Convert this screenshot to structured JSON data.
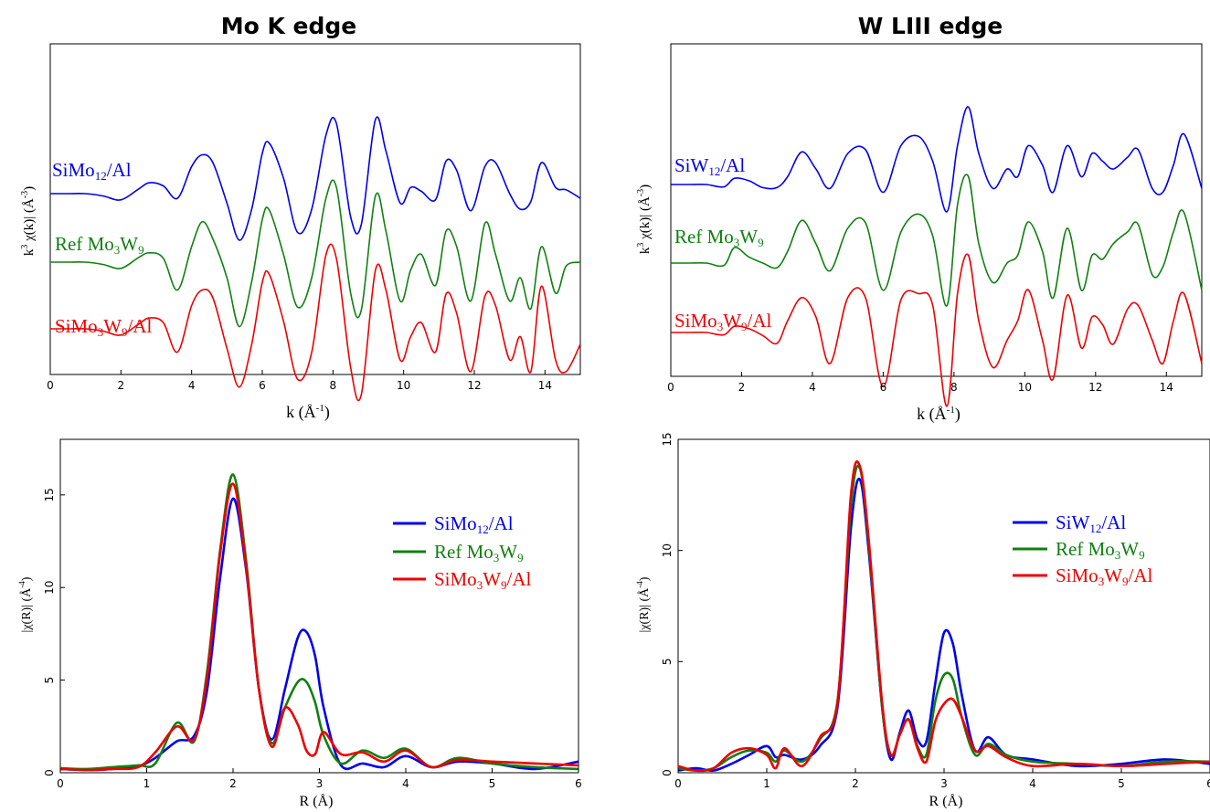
{
  "chart_data": [
    {
      "type": "line",
      "title": "Mo K edge",
      "xlabel": "k (Å-1)",
      "ylabel": "k3 χ(k)| (Å-3)",
      "xlim": [
        0,
        15
      ],
      "xticks": [
        "0",
        "2",
        "4",
        "6",
        "8",
        "10",
        "12",
        "14"
      ],
      "grid": false,
      "series": [
        {
          "name": "SiMo12/Al",
          "color": "#0000ee",
          "offset": 164,
          "x": [
            0,
            0.5,
            1,
            1.5,
            2,
            2.5,
            2.8,
            3.2,
            3.6,
            4,
            4.3,
            4.6,
            5,
            5.35,
            5.7,
            6,
            6.2,
            6.6,
            7,
            7.4,
            7.8,
            8.1,
            8.5,
            8.8,
            9.2,
            9.5,
            9.9,
            10.2,
            10.5,
            10.9,
            11.2,
            11.5,
            11.9,
            12.3,
            12.6,
            13,
            13.3,
            13.6,
            13.9,
            14.3,
            14.6,
            15
          ],
          "y": [
            0,
            0,
            0,
            -3,
            -8,
            6,
            14,
            10,
            -6,
            35,
            50,
            40,
            -12,
            -60,
            -20,
            52,
            65,
            20,
            -50,
            -20,
            75,
            90,
            -30,
            -40,
            95,
            55,
            -12,
            8,
            3,
            -8,
            42,
            30,
            -22,
            35,
            40,
            0,
            -20,
            -10,
            40,
            8,
            5,
            -6
          ]
        },
        {
          "name": "Ref Mo3W9",
          "color": "#108010",
          "offset": 239,
          "x": [
            0,
            0.5,
            1,
            1.5,
            2,
            2.5,
            2.8,
            3.2,
            3.6,
            4,
            4.3,
            4.6,
            5,
            5.35,
            5.7,
            6,
            6.2,
            6.6,
            7,
            7.4,
            7.8,
            8.1,
            8.5,
            8.8,
            9.2,
            9.5,
            9.9,
            10.2,
            10.5,
            10.9,
            11.2,
            11.5,
            11.9,
            12.3,
            12.6,
            13,
            13.3,
            13.6,
            13.9,
            14.3,
            14.6,
            15
          ],
          "y": [
            0,
            0,
            0,
            -3,
            -8,
            6,
            12,
            5,
            -36,
            20,
            52,
            30,
            -20,
            -83,
            -25,
            55,
            67,
            10,
            -58,
            -20,
            82,
            96,
            -40,
            -62,
            85,
            40,
            -50,
            -10,
            10,
            -30,
            40,
            20,
            -50,
            50,
            10,
            -50,
            -20,
            -60,
            20,
            -40,
            -5,
            0
          ]
        },
        {
          "name": "SiMo3W9/Al",
          "color": "#ee0000",
          "offset": 312,
          "x": [
            0,
            0.5,
            1,
            1.5,
            2,
            2.5,
            2.8,
            3.2,
            3.6,
            4,
            4.3,
            4.6,
            5,
            5.35,
            5.7,
            6,
            6.2,
            6.6,
            7,
            7.4,
            7.8,
            8.1,
            8.5,
            8.8,
            9.2,
            9.5,
            9.9,
            10.2,
            10.5,
            10.9,
            11.2,
            11.5,
            11.9,
            12.3,
            12.6,
            13,
            13.3,
            13.6,
            13.9,
            14.3,
            14.6,
            15
          ],
          "y": [
            0,
            0,
            0,
            -3,
            -8,
            6,
            14,
            8,
            -30,
            30,
            50,
            40,
            -25,
            -75,
            -20,
            60,
            70,
            10,
            -65,
            -30,
            95,
            90,
            -50,
            -85,
            75,
            50,
            -40,
            -10,
            8,
            -30,
            45,
            20,
            -55,
            42,
            30,
            -40,
            -10,
            -55,
            55,
            -40,
            -55,
            -20
          ]
        }
      ]
    },
    {
      "type": "line",
      "title": "W LIII edge",
      "xlabel": "k (Å-1)",
      "ylabel": "k3 χ(k)| (Å-3)",
      "xlim": [
        0,
        15
      ],
      "xticks": [
        "0",
        "2",
        "4",
        "6",
        "8",
        "10",
        "12",
        "14"
      ],
      "grid": false,
      "series": [
        {
          "name": "SiW12/Al",
          "color": "#0000ee",
          "offset": 154,
          "x": [
            0,
            0.5,
            1,
            1.5,
            1.8,
            2.2,
            2.6,
            3,
            3.3,
            3.7,
            4.1,
            4.5,
            5,
            5.5,
            6,
            6.5,
            7,
            7.4,
            7.8,
            8.1,
            8.4,
            8.7,
            9.1,
            9.5,
            9.8,
            10.1,
            10.5,
            10.8,
            11.2,
            11.6,
            11.9,
            12.2,
            12.5,
            12.9,
            13.2,
            13.6,
            13.9,
            14.2,
            14.5,
            15
          ],
          "y": [
            0,
            0,
            0,
            -3,
            8,
            5,
            -4,
            -4,
            10,
            42,
            20,
            -5,
            40,
            45,
            -10,
            50,
            62,
            30,
            -35,
            50,
            100,
            40,
            -5,
            20,
            10,
            50,
            25,
            -10,
            50,
            10,
            40,
            30,
            20,
            35,
            45,
            -5,
            -10,
            25,
            65,
            -5
          ]
        },
        {
          "name": "Ref Mo3W9",
          "color": "#108010",
          "offset": 240,
          "x": [
            0,
            0.5,
            1,
            1.5,
            1.8,
            2.2,
            2.6,
            3,
            3.3,
            3.7,
            4.1,
            4.5,
            5,
            5.5,
            6,
            6.5,
            7,
            7.4,
            7.8,
            8.1,
            8.4,
            8.7,
            9.1,
            9.5,
            9.8,
            10.1,
            10.5,
            10.8,
            11.2,
            11.6,
            11.9,
            12.2,
            12.5,
            12.9,
            13.2,
            13.6,
            13.9,
            14.2,
            14.5,
            15
          ],
          "y": [
            0,
            0,
            0,
            -3,
            20,
            8,
            0,
            -6,
            15,
            55,
            25,
            -10,
            45,
            52,
            -35,
            40,
            63,
            35,
            -55,
            75,
            112,
            25,
            -25,
            0,
            10,
            53,
            15,
            -45,
            45,
            -35,
            10,
            5,
            25,
            40,
            50,
            -15,
            -5,
            40,
            65,
            -35
          ]
        },
        {
          "name": "SiMo3W9/Al",
          "color": "#ee0000",
          "offset": 316,
          "x": [
            0,
            0.5,
            1,
            1.5,
            1.8,
            2.2,
            2.6,
            3,
            3.3,
            3.7,
            4.1,
            4.5,
            5,
            5.5,
            6,
            6.5,
            7,
            7.4,
            7.8,
            8.1,
            8.4,
            8.7,
            9.1,
            9.5,
            9.8,
            10.1,
            10.5,
            10.8,
            11.2,
            11.6,
            11.9,
            12.2,
            12.5,
            12.9,
            13.2,
            13.6,
            13.9,
            14.2,
            14.5,
            15
          ],
          "y": [
            0,
            0,
            0,
            -3,
            8,
            5,
            -4,
            -14,
            15,
            45,
            20,
            -40,
            45,
            45,
            -70,
            42,
            50,
            35,
            -95,
            50,
            100,
            15,
            -45,
            -10,
            15,
            55,
            -10,
            -60,
            48,
            -20,
            20,
            10,
            -15,
            30,
            35,
            -10,
            -40,
            15,
            50,
            -40
          ]
        }
      ]
    },
    {
      "type": "line",
      "xlabel": "R (Å)",
      "ylabel": "|χ(R)| (Å-4)",
      "xlim": [
        0,
        6
      ],
      "ylim": [
        0,
        18
      ],
      "xticks": [
        "0",
        "1",
        "2",
        "3",
        "4",
        "5",
        "6"
      ],
      "yticks": [
        "0",
        "5",
        "10",
        "15"
      ],
      "legend": "right",
      "grid": false,
      "series": [
        {
          "name": "SiMo12/Al",
          "color": "#0000ee",
          "x": [
            0,
            0.3,
            0.6,
            0.9,
            1.1,
            1.35,
            1.55,
            1.7,
            1.85,
            2,
            2.15,
            2.3,
            2.45,
            2.6,
            2.75,
            2.85,
            2.95,
            3.05,
            3.25,
            3.5,
            3.75,
            4,
            4.3,
            4.6,
            5,
            5.5,
            6
          ],
          "y": [
            0.2,
            0.15,
            0.2,
            0.35,
            0.8,
            1.7,
            2.0,
            4.5,
            10.5,
            14.8,
            11,
            4.5,
            1.8,
            4.5,
            7.3,
            7.6,
            6.3,
            3.5,
            0.4,
            0.5,
            0.3,
            0.9,
            0.3,
            0.6,
            0.5,
            0.2,
            0.6
          ]
        },
        {
          "name": "Ref Mo3W9",
          "color": "#108010",
          "x": [
            0,
            0.3,
            0.6,
            0.9,
            1.1,
            1.35,
            1.55,
            1.7,
            1.85,
            2,
            2.15,
            2.3,
            2.45,
            2.6,
            2.75,
            2.85,
            2.95,
            3.05,
            3.25,
            3.5,
            3.75,
            4,
            4.3,
            4.6,
            5,
            5.5,
            6
          ],
          "y": [
            0.25,
            0.2,
            0.3,
            0.4,
            0.5,
            2.7,
            1.7,
            5.5,
            12,
            16.1,
            11.5,
            4.5,
            1.6,
            3.5,
            4.9,
            4.9,
            3.8,
            2.0,
            0.5,
            1.2,
            0.8,
            1.3,
            0.3,
            0.8,
            0.5,
            0.3,
            0.2
          ]
        },
        {
          "name": "SiMo3W9/Al",
          "color": "#ee0000",
          "x": [
            0,
            0.3,
            0.6,
            0.9,
            1.1,
            1.35,
            1.55,
            1.7,
            1.85,
            2,
            2.15,
            2.3,
            2.45,
            2.6,
            2.75,
            2.85,
            2.95,
            3.05,
            3.25,
            3.5,
            3.75,
            4,
            4.3,
            4.6,
            5,
            5.5,
            6
          ],
          "y": [
            0.2,
            0.15,
            0.2,
            0.3,
            1.1,
            2.5,
            1.8,
            5.2,
            11.8,
            15.6,
            11.2,
            4.5,
            1.4,
            3.5,
            2.6,
            1.2,
            1.0,
            2.2,
            1.0,
            1.1,
            0.6,
            1.2,
            0.3,
            0.7,
            0.6,
            0.5,
            0.4
          ]
        }
      ]
    },
    {
      "type": "line",
      "xlabel": "R (Å)",
      "ylabel": "|χ(R)| (Å-4)",
      "xlim": [
        0,
        6
      ],
      "ylim": [
        0,
        15
      ],
      "xticks": [
        "0",
        "1",
        "2",
        "3",
        "4",
        "5",
        "6"
      ],
      "yticks": [
        "0",
        "5",
        "10",
        "15"
      ],
      "legend": "right",
      "grid": false,
      "series": [
        {
          "name": "SiW12/Al",
          "color": "#0000ee",
          "x": [
            0,
            0.2,
            0.4,
            0.6,
            0.8,
            1,
            1.1,
            1.2,
            1.4,
            1.6,
            1.8,
            1.95,
            2.05,
            2.15,
            2.3,
            2.4,
            2.5,
            2.6,
            2.7,
            2.8,
            2.9,
            3,
            3.1,
            3.2,
            3.35,
            3.5,
            3.7,
            4,
            4.5,
            5,
            5.5,
            6
          ],
          "y": [
            0.1,
            0.2,
            0.1,
            0.4,
            0.8,
            1.2,
            0.7,
            0.8,
            0.6,
            1.2,
            3.0,
            11,
            13.2,
            10,
            3,
            0.6,
            1.8,
            2.8,
            1.5,
            1.4,
            4.0,
            6.3,
            5.8,
            3.5,
            1.0,
            1.6,
            0.8,
            0.6,
            0.3,
            0.4,
            0.6,
            0.4
          ]
        },
        {
          "name": "Ref Mo3W9",
          "color": "#108010",
          "x": [
            0,
            0.2,
            0.4,
            0.6,
            0.8,
            1,
            1.1,
            1.2,
            1.4,
            1.6,
            1.8,
            1.95,
            2.05,
            2.15,
            2.3,
            2.4,
            2.5,
            2.6,
            2.7,
            2.8,
            2.9,
            3,
            3.1,
            3.2,
            3.35,
            3.5,
            3.7,
            4,
            4.5,
            5,
            5.5,
            6
          ],
          "y": [
            0.2,
            0.1,
            0.2,
            0.7,
            1.0,
            0.9,
            0.5,
            1.0,
            0.5,
            1.5,
            3.3,
            12,
            13.7,
            10.3,
            3,
            0.8,
            1.7,
            2.4,
            1.2,
            0.8,
            3.2,
            4.4,
            4.2,
            2.5,
            0.8,
            1.3,
            0.8,
            0.5,
            0.4,
            0.3,
            0.5,
            0.5
          ]
        },
        {
          "name": "SiMo3W9/Al",
          "color": "#ee0000",
          "x": [
            0,
            0.2,
            0.4,
            0.6,
            0.8,
            1,
            1.1,
            1.2,
            1.4,
            1.6,
            1.8,
            1.95,
            2.05,
            2.15,
            2.3,
            2.4,
            2.5,
            2.6,
            2.7,
            2.8,
            2.9,
            3,
            3.1,
            3.2,
            3.35,
            3.5,
            3.7,
            4,
            4.5,
            5,
            5.5,
            6
          ],
          "y": [
            0.3,
            0.1,
            0.2,
            0.9,
            1.1,
            0.8,
            0.2,
            1.1,
            0.3,
            1.6,
            3.2,
            12.5,
            13.8,
            10.5,
            3.2,
            0.8,
            1.7,
            2.4,
            1.1,
            0.5,
            2.3,
            3.1,
            3.3,
            2.5,
            1.0,
            1.2,
            0.7,
            0.3,
            0.4,
            0.3,
            0.4,
            0.5
          ]
        }
      ]
    }
  ]
}
